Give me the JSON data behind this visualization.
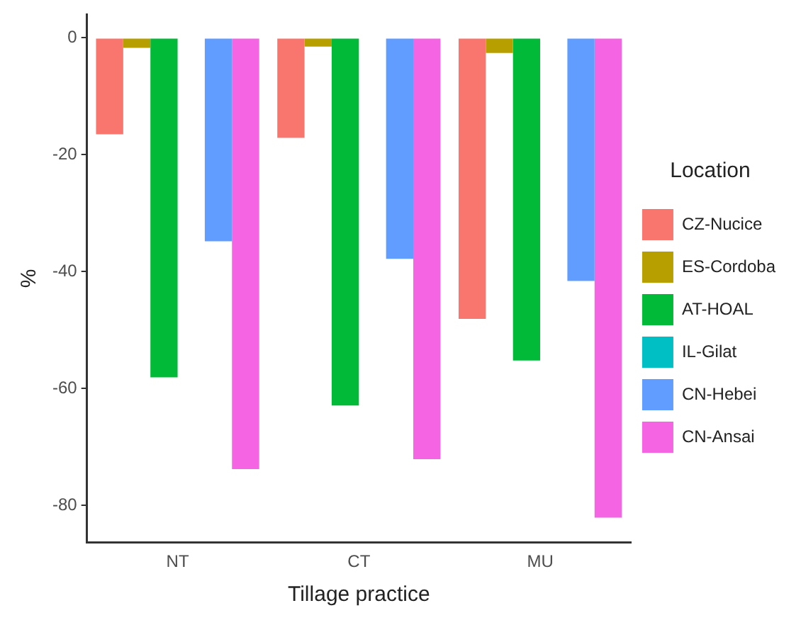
{
  "chart_data": {
    "type": "bar",
    "xlabel": "Tillage practice",
    "ylabel": "%",
    "legend_title": "Location",
    "categories": [
      "NT",
      "CT",
      "MU"
    ],
    "series": [
      {
        "name": "CZ-Nucice",
        "color": "#f8766d",
        "values": [
          -16.5,
          -17.1,
          -48.1
        ]
      },
      {
        "name": "ES-Cordoba",
        "color": "#b79f00",
        "values": [
          -1.7,
          -1.5,
          -2.6
        ]
      },
      {
        "name": "AT-HOAL",
        "color": "#00ba38",
        "values": [
          -58.1,
          -62.9,
          -55.2
        ]
      },
      {
        "name": "IL-Gilat",
        "color": "#00bfc4",
        "values": [
          null,
          null,
          null
        ]
      },
      {
        "name": "CN-Hebei",
        "color": "#619cff",
        "values": [
          -34.8,
          -37.8,
          -41.6
        ]
      },
      {
        "name": "CN-Ansai",
        "color": "#f564e3",
        "values": [
          -73.8,
          -72.1,
          -82.1
        ]
      }
    ],
    "ylim": [
      -86.3,
      4
    ],
    "yticks": [
      -80,
      -60,
      -40,
      -20,
      0
    ],
    "grid": false,
    "legend": "right"
  }
}
